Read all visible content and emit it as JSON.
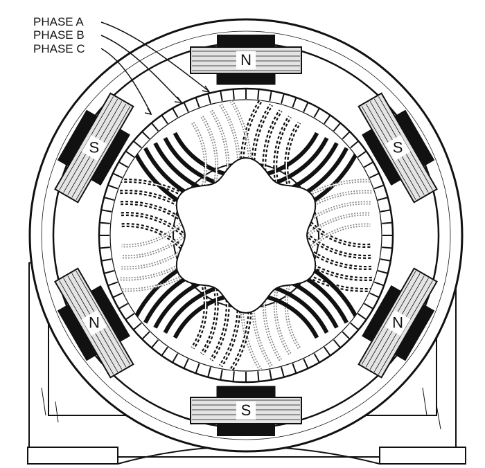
{
  "labels": {
    "phase_a": "PHASE A",
    "phase_b": "PHASE B",
    "phase_c": "PHASE C"
  },
  "poles": [
    {
      "id": "pole-top",
      "letter": "N"
    },
    {
      "id": "pole-upper-right",
      "letter": "S"
    },
    {
      "id": "pole-lower-right",
      "letter": "N"
    },
    {
      "id": "pole-bottom",
      "letter": "S"
    },
    {
      "id": "pole-lower-left",
      "letter": "N"
    },
    {
      "id": "pole-upper-left",
      "letter": "S"
    }
  ],
  "colors": {
    "ink": "#111111",
    "paper": "#ffffff",
    "pole_fill": "#dddddd"
  }
}
